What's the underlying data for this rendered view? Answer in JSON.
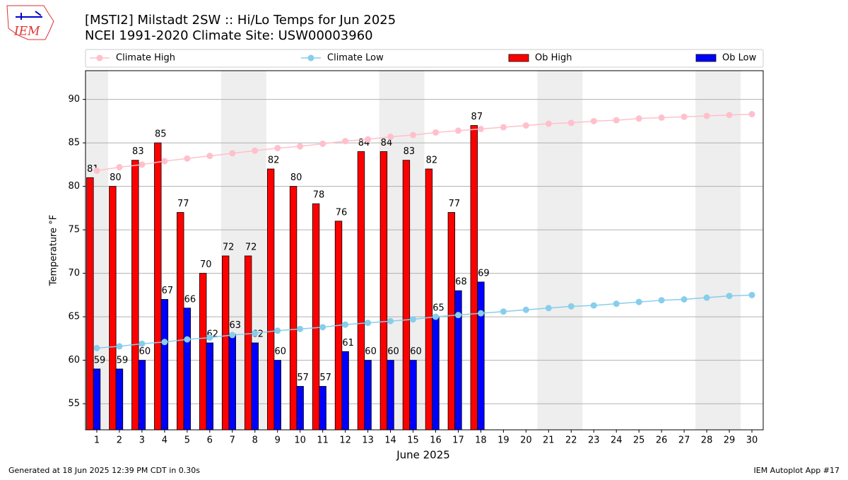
{
  "logo_text": "IEM",
  "chart_data": {
    "type": "bar",
    "title": "[MSTI2] Milstadt 2SW :: Hi/Lo Temps for Jun 2025",
    "subtitle": "NCEI 1991-2020 Climate Site: USW00003960",
    "x_label": "June 2025",
    "y_label": "Temperature °F",
    "x": [
      1,
      2,
      3,
      4,
      5,
      6,
      7,
      8,
      9,
      10,
      11,
      12,
      13,
      14,
      15,
      16,
      17,
      18,
      19,
      20,
      21,
      22,
      23,
      24,
      25,
      26,
      27,
      28,
      29,
      30
    ],
    "xlim": [
      0.5,
      30.5
    ],
    "xticks": [
      1,
      2,
      3,
      4,
      5,
      6,
      7,
      8,
      9,
      10,
      11,
      12,
      13,
      14,
      15,
      16,
      17,
      18,
      19,
      20,
      21,
      22,
      23,
      24,
      25,
      26,
      27,
      28,
      29,
      30
    ],
    "ylim": [
      52,
      93.3
    ],
    "yticks": [
      55,
      60,
      65,
      70,
      75,
      80,
      85,
      90
    ],
    "grid": true,
    "shaded_spans": [
      [
        0.5,
        1.5
      ],
      [
        6.5,
        8.5
      ],
      [
        13.5,
        15.5
      ],
      [
        20.5,
        22.5
      ],
      [
        27.5,
        29.5
      ]
    ],
    "series": [
      {
        "name": "Climate High",
        "type": "line",
        "color": "#ffc0cb",
        "values": [
          81.8,
          82.2,
          82.5,
          82.9,
          83.2,
          83.5,
          83.8,
          84.1,
          84.4,
          84.6,
          84.9,
          85.2,
          85.4,
          85.7,
          85.9,
          86.2,
          86.4,
          86.6,
          86.8,
          87.0,
          87.2,
          87.3,
          87.5,
          87.6,
          87.8,
          87.9,
          88.0,
          88.1,
          88.2,
          88.3
        ]
      },
      {
        "name": "Climate Low",
        "type": "line",
        "color": "#87ceeb",
        "values": [
          61.4,
          61.6,
          61.9,
          62.1,
          62.4,
          62.6,
          62.9,
          63.1,
          63.4,
          63.6,
          63.8,
          64.1,
          64.3,
          64.5,
          64.7,
          65.0,
          65.2,
          65.4,
          65.6,
          65.8,
          66.0,
          66.2,
          66.3,
          66.5,
          66.7,
          66.9,
          67.0,
          67.2,
          67.4,
          67.5
        ]
      },
      {
        "name": "Ob High",
        "type": "bar",
        "color": "#ff0000",
        "offset": -0.3,
        "values": [
          81,
          80,
          83,
          85,
          77,
          70,
          72,
          72,
          82,
          80,
          78,
          76,
          84,
          84,
          83,
          82,
          77,
          87,
          null,
          null,
          null,
          null,
          null,
          null,
          null,
          null,
          null,
          null,
          null,
          null
        ]
      },
      {
        "name": "Ob Low",
        "type": "bar",
        "color": "#0000ff",
        "offset": 0,
        "values": [
          59,
          59,
          60,
          67,
          66,
          62,
          63,
          62,
          60,
          57,
          57,
          61,
          60,
          60,
          60,
          65,
          68,
          69,
          null,
          null,
          null,
          null,
          null,
          null,
          null,
          null,
          null,
          null,
          null,
          null
        ]
      }
    ],
    "footer_left": "Generated at 18 Jun 2025 12:39 PM CDT in 0.30s",
    "footer_right": "IEM Autoplot App #17"
  }
}
